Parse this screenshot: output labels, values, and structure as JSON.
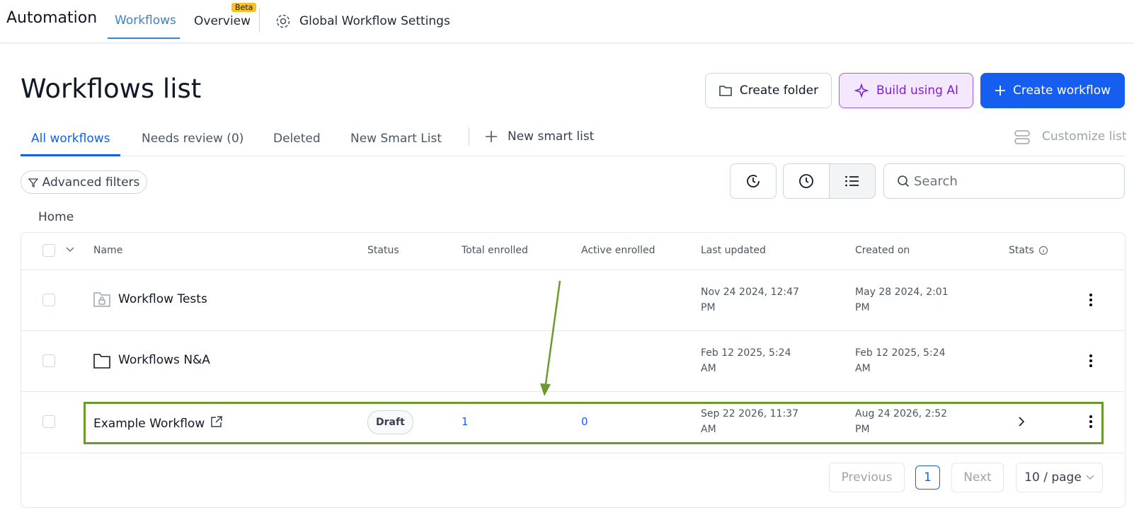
{
  "nav": {
    "brand": "Automation",
    "tabs": [
      "Workflows",
      "Overview",
      "Global Workflow Settings"
    ],
    "badge": "Beta"
  },
  "header": {
    "title": "Workflows list",
    "buttons": [
      "Create folder",
      "Build using AI",
      "Create workflow"
    ]
  },
  "list_tabs": {
    "tabs": [
      "All workflows",
      "Needs review (0)",
      "Deleted",
      "New Smart List"
    ],
    "new_smart_list": "New smart list",
    "customize": "Customize list"
  },
  "toolbar": {
    "filters": "Advanced filters",
    "search_placeholder": "Search"
  },
  "breadcrumb": "Home",
  "table": {
    "columns": [
      "Name",
      "Status",
      "Total enrolled",
      "Active enrolled",
      "Last updated",
      "Created on",
      "Stats"
    ],
    "rows": [
      {
        "name": "Workflow Tests",
        "last_updated": "Nov 24 2024, 12:47 PM",
        "created_on": "May 28 2024, 2:01 PM"
      },
      {
        "name": "Workflows N&A",
        "last_updated": "Feb 12 2025, 5:24 AM",
        "created_on": "Feb 12 2025, 5:24 AM"
      },
      {
        "name": "Example Workflow",
        "status": "Draft",
        "total_enrolled": 1,
        "active_enrolled": 0,
        "last_updated": "Sep 22 2026, 11:37 AM",
        "created_on": "Aug 24 2026, 2:52 PM"
      }
    ]
  },
  "pagination": {
    "previous": "Previous",
    "page": 1,
    "next": "Next",
    "page_size": "10 / page"
  }
}
